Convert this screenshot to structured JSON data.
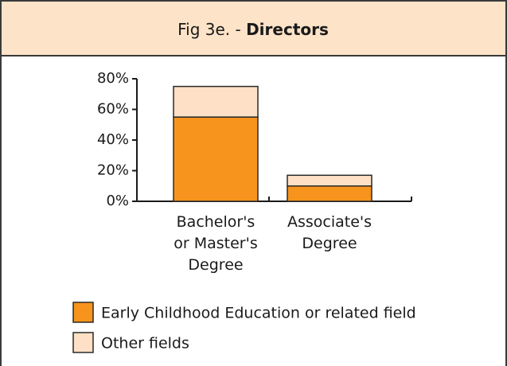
{
  "chart_data": {
    "type": "stacked_bar",
    "title": "Fig 3e. -",
    "title_bold": "Directors",
    "categories": [
      "Bachelor's\nor Master's\nDegree",
      "Associate's\nDegree"
    ],
    "series": [
      {
        "name": "Early Childhood Education or related field",
        "color": "#f7941d",
        "values": [
          55,
          10
        ]
      },
      {
        "name": "Other fields",
        "color": "#fde0c5",
        "values": [
          20,
          7
        ]
      }
    ],
    "ylim": [
      0,
      80
    ],
    "yticks": [
      {
        "value": 0,
        "label": "0%"
      },
      {
        "value": 20,
        "label": "20%"
      },
      {
        "value": 40,
        "label": "40%"
      },
      {
        "value": 60,
        "label": "60%"
      },
      {
        "value": 80,
        "label": "80%"
      }
    ]
  }
}
